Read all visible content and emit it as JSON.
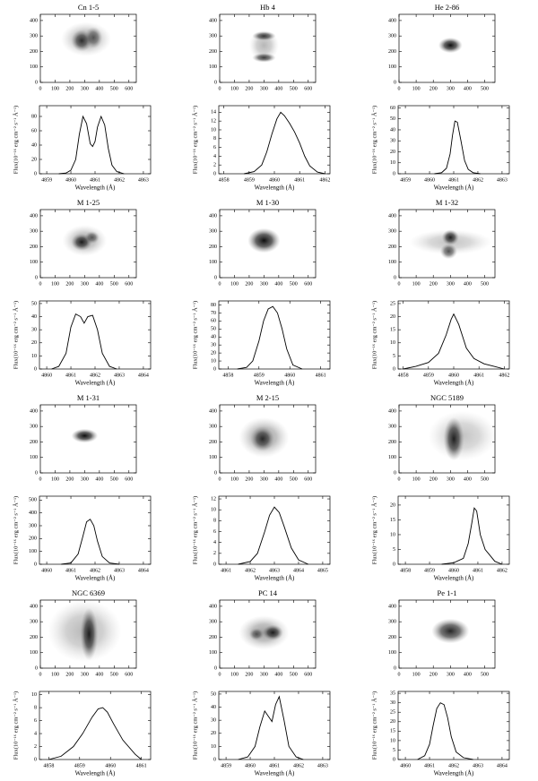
{
  "chart_data": [
    {
      "type": "image",
      "title": "Cn 1-5",
      "xlim": [
        0,
        650
      ],
      "ylim": [
        0,
        440
      ],
      "xticks": [
        0,
        100,
        200,
        300,
        400,
        500,
        600
      ],
      "yticks": [
        0,
        100,
        200,
        300,
        400
      ]
    },
    {
      "type": "line",
      "x_label": "Wavelength (Å)",
      "y_label": "Flux(10⁻¹⁶ erg cm⁻² s⁻¹ Å⁻¹)",
      "color": "#000000",
      "x": [
        4859.5,
        4859.8,
        4860.0,
        4860.2,
        4860.35,
        4860.5,
        4860.65,
        4860.8,
        4860.9,
        4861.0,
        4861.1,
        4861.25,
        4861.4,
        4861.55,
        4861.7,
        4861.9,
        4862.2
      ],
      "values": [
        0,
        1,
        5,
        20,
        55,
        80,
        70,
        42,
        38,
        45,
        65,
        80,
        68,
        35,
        12,
        3,
        0
      ],
      "xlim": [
        4858.7,
        4863.3
      ],
      "ylim": [
        0,
        95
      ],
      "xticks": [
        4859,
        4860,
        4861,
        4862,
        4863
      ],
      "yticks": [
        0,
        20,
        40,
        60,
        80
      ]
    },
    {
      "type": "image",
      "title": "Hb 4",
      "xlim": [
        0,
        650
      ],
      "ylim": [
        0,
        440
      ],
      "xticks": [
        0,
        100,
        200,
        300,
        400,
        500,
        600
      ],
      "yticks": [
        0,
        100,
        200,
        300,
        400
      ]
    },
    {
      "type": "line",
      "x_label": "Wavelength (Å)",
      "y_label": "Flux(10⁻¹⁶ erg cm⁻² s⁻¹ Å⁻¹)",
      "color": "#000000",
      "x": [
        4858.8,
        4859.2,
        4859.5,
        4859.7,
        4859.9,
        4860.1,
        4860.25,
        4860.4,
        4860.6,
        4860.8,
        4861.0,
        4861.2,
        4861.4,
        4861.7,
        4862.0
      ],
      "values": [
        0,
        0.5,
        2,
        5,
        9,
        12.5,
        14,
        13.2,
        11.5,
        9.5,
        7,
        4,
        1.8,
        0.4,
        0
      ],
      "xlim": [
        4857.8,
        4862.2
      ],
      "ylim": [
        0,
        15.5
      ],
      "xticks": [
        4858,
        4859,
        4860,
        4861,
        4862
      ],
      "yticks": [
        0,
        2,
        4,
        6,
        8,
        10,
        12,
        14
      ]
    },
    {
      "type": "image",
      "title": "He 2-86",
      "xlim": [
        0,
        560
      ],
      "ylim": [
        0,
        440
      ],
      "xticks": [
        0,
        100,
        200,
        300,
        400,
        500
      ],
      "yticks": [
        0,
        100,
        200,
        300,
        400
      ]
    },
    {
      "type": "line",
      "x_label": "Wavelength (Å)",
      "y_label": "Flux(10⁻¹⁶ erg cm⁻² s⁻¹ Å⁻¹)",
      "color": "#000000",
      "x": [
        4860.2,
        4860.5,
        4860.7,
        4860.85,
        4860.95,
        4861.05,
        4861.15,
        4861.3,
        4861.45,
        4861.6,
        4861.8,
        4862.1
      ],
      "values": [
        0,
        1,
        5,
        18,
        35,
        48,
        47,
        30,
        12,
        4,
        1,
        0
      ],
      "xlim": [
        4858.7,
        4863.3
      ],
      "ylim": [
        0,
        62
      ],
      "xticks": [
        4859,
        4860,
        4861,
        4862,
        4863
      ],
      "yticks": [
        0,
        10,
        20,
        30,
        40,
        50,
        60
      ]
    },
    {
      "type": "image",
      "title": "M 1-25",
      "xlim": [
        0,
        650
      ],
      "ylim": [
        0,
        440
      ],
      "xticks": [
        0,
        100,
        200,
        300,
        400,
        500,
        600
      ],
      "yticks": [
        0,
        100,
        200,
        300,
        400
      ]
    },
    {
      "type": "line",
      "x_label": "Wavelength (Å)",
      "y_label": "Flux(10⁻¹⁶ erg cm⁻² s⁻¹ Å⁻¹)",
      "color": "#000000",
      "x": [
        4860.2,
        4860.5,
        4860.8,
        4861.0,
        4861.2,
        4861.4,
        4861.55,
        4861.7,
        4861.9,
        4862.1,
        4862.3,
        4862.6,
        4862.9
      ],
      "values": [
        0,
        2,
        12,
        32,
        42,
        40,
        35,
        40,
        41,
        30,
        12,
        2,
        0
      ],
      "xlim": [
        4859.7,
        4864.3
      ],
      "ylim": [
        0,
        52
      ],
      "xticks": [
        4860,
        4861,
        4862,
        4863,
        4864
      ],
      "yticks": [
        0,
        10,
        20,
        30,
        40,
        50
      ]
    },
    {
      "type": "image",
      "title": "M 1-30",
      "xlim": [
        0,
        650
      ],
      "ylim": [
        0,
        440
      ],
      "xticks": [
        0,
        100,
        200,
        300,
        400,
        500,
        600
      ],
      "yticks": [
        0,
        100,
        200,
        300,
        400
      ]
    },
    {
      "type": "line",
      "x_label": "Wavelength (Å)",
      "y_label": "Flux(10⁻¹⁶ erg cm⁻² s⁻¹ Å⁻¹)",
      "color": "#000000",
      "x": [
        4858.3,
        4858.6,
        4858.8,
        4859.0,
        4859.15,
        4859.3,
        4859.45,
        4859.6,
        4859.75,
        4859.9,
        4860.1,
        4860.4
      ],
      "values": [
        0,
        2,
        10,
        35,
        60,
        75,
        78,
        70,
        50,
        25,
        5,
        0
      ],
      "xlim": [
        4857.7,
        4861.3
      ],
      "ylim": [
        0,
        85
      ],
      "xticks": [
        4858,
        4859,
        4860,
        4861
      ],
      "yticks": [
        0,
        10,
        20,
        30,
        40,
        50,
        60,
        70,
        80
      ]
    },
    {
      "type": "image",
      "title": "M 1-32",
      "xlim": [
        0,
        560
      ],
      "ylim": [
        0,
        440
      ],
      "xticks": [
        0,
        100,
        200,
        300,
        400,
        500
      ],
      "yticks": [
        0,
        100,
        200,
        300,
        400
      ]
    },
    {
      "type": "line",
      "x_label": "Wavelength (Å)",
      "y_label": "Flux(10⁻¹⁶ erg cm⁻² s⁻¹ Å⁻¹)",
      "color": "#000000",
      "x": [
        4858.0,
        4858.5,
        4859.0,
        4859.4,
        4859.7,
        4859.9,
        4860.0,
        4860.2,
        4860.5,
        4860.8,
        4861.2,
        4861.6,
        4862.0
      ],
      "values": [
        0,
        1,
        2.5,
        6,
        13,
        19,
        21,
        17,
        8,
        4,
        2,
        1,
        0
      ],
      "xlim": [
        4857.8,
        4862.2
      ],
      "ylim": [
        0,
        26
      ],
      "xticks": [
        4858,
        4859,
        4860,
        4861,
        4862
      ],
      "yticks": [
        0,
        5,
        10,
        15,
        20,
        25
      ]
    },
    {
      "type": "image",
      "title": "M 1-31",
      "xlim": [
        0,
        650
      ],
      "ylim": [
        0,
        440
      ],
      "xticks": [
        0,
        100,
        200,
        300,
        400,
        500,
        600
      ],
      "yticks": [
        0,
        100,
        200,
        300,
        400
      ]
    },
    {
      "type": "line",
      "x_label": "Wavelength (Å)",
      "y_label": "Flux(10⁻¹⁶ erg cm⁻² s⁻¹ Å⁻¹)",
      "color": "#000000",
      "x": [
        4860.6,
        4861.0,
        4861.3,
        4861.5,
        4861.65,
        4861.8,
        4861.95,
        4862.1,
        4862.3,
        4862.6,
        4863.0
      ],
      "values": [
        0,
        10,
        80,
        220,
        330,
        350,
        300,
        180,
        60,
        10,
        0
      ],
      "xlim": [
        4859.7,
        4864.3
      ],
      "ylim": [
        0,
        530
      ],
      "xticks": [
        4860,
        4861,
        4862,
        4863,
        4864
      ],
      "yticks": [
        0,
        100,
        200,
        300,
        400,
        500
      ]
    },
    {
      "type": "image",
      "title": "M 2-15",
      "xlim": [
        0,
        650
      ],
      "ylim": [
        0,
        440
      ],
      "xticks": [
        0,
        100,
        200,
        300,
        400,
        500,
        600
      ],
      "yticks": [
        0,
        100,
        200,
        300,
        400
      ]
    },
    {
      "type": "line",
      "x_label": "Wavelength (Å)",
      "y_label": "Flux(10⁻¹⁶ erg cm⁻² s⁻¹ Å⁻¹)",
      "color": "#000000",
      "x": [
        4861.5,
        4862.0,
        4862.3,
        4862.6,
        4862.8,
        4863.0,
        4863.2,
        4863.4,
        4863.7,
        4864.0,
        4864.4
      ],
      "values": [
        0,
        0.5,
        2,
        6,
        9,
        10.5,
        9.5,
        7,
        3,
        0.8,
        0
      ],
      "xlim": [
        4860.7,
        4865.3
      ],
      "ylim": [
        0,
        12.5
      ],
      "xticks": [
        4861,
        4862,
        4863,
        4864,
        4865
      ],
      "yticks": [
        0,
        2,
        4,
        6,
        8,
        10,
        12
      ]
    },
    {
      "type": "image",
      "title": "NGC 5189",
      "xlim": [
        0,
        560
      ],
      "ylim": [
        0,
        440
      ],
      "xticks": [
        0,
        100,
        200,
        300,
        400,
        500
      ],
      "yticks": [
        0,
        100,
        200,
        300,
        400
      ]
    },
    {
      "type": "line",
      "x_label": "Wavelength (Å)",
      "y_label": "Flux(10⁻¹⁶ erg cm⁻² s⁻¹ Å⁻¹)",
      "color": "#000000",
      "x": [
        4859.5,
        4860.0,
        4860.4,
        4860.6,
        4860.75,
        4860.85,
        4860.95,
        4861.1,
        4861.3,
        4861.5,
        4861.7,
        4862.0
      ],
      "values": [
        0,
        0.5,
        2,
        7,
        14,
        19,
        18,
        10,
        5,
        3,
        1,
        0
      ],
      "xlim": [
        4857.7,
        4862.3
      ],
      "ylim": [
        0,
        23
      ],
      "xticks": [
        4858,
        4859,
        4860,
        4861,
        4862
      ],
      "yticks": [
        0,
        5,
        10,
        15,
        20
      ]
    },
    {
      "type": "image",
      "title": "NGC 6369",
      "xlim": [
        0,
        650
      ],
      "ylim": [
        0,
        440
      ],
      "xticks": [
        0,
        100,
        200,
        300,
        400,
        500,
        600
      ],
      "yticks": [
        0,
        100,
        200,
        300,
        400
      ]
    },
    {
      "type": "line",
      "x_label": "Wavelength (Å)",
      "y_label": "Flux(10⁻¹⁶ erg cm⁻² s⁻¹ Å⁻¹)",
      "color": "#000000",
      "x": [
        4858.0,
        4858.4,
        4858.8,
        4859.1,
        4859.4,
        4859.6,
        4859.75,
        4859.9,
        4860.1,
        4860.4,
        4860.8,
        4861.0
      ],
      "values": [
        0,
        0.5,
        2,
        4,
        6.5,
        7.8,
        8,
        7.3,
        5.5,
        3,
        0.8,
        0
      ],
      "xlim": [
        4857.7,
        4861.3
      ],
      "ylim": [
        0,
        10.5
      ],
      "xticks": [
        4858,
        4859,
        4860,
        4861
      ],
      "yticks": [
        0,
        2,
        4,
        6,
        8,
        10
      ]
    },
    {
      "type": "image",
      "title": "PC 14",
      "xlim": [
        0,
        650
      ],
      "ylim": [
        0,
        440
      ],
      "xticks": [
        0,
        100,
        200,
        300,
        400,
        500,
        600
      ],
      "yticks": [
        0,
        100,
        200,
        300,
        400
      ]
    },
    {
      "type": "line",
      "x_label": "Wavelength (Å)",
      "y_label": "Flux(10⁻¹⁶ erg cm⁻² s⁻¹ Å⁻¹)",
      "color": "#000000",
      "x": [
        4859.5,
        4859.9,
        4860.2,
        4860.4,
        4860.6,
        4860.75,
        4860.9,
        4861.05,
        4861.2,
        4861.4,
        4861.6,
        4861.9,
        4862.2
      ],
      "values": [
        0,
        2,
        10,
        25,
        37,
        33,
        29,
        42,
        48,
        30,
        10,
        2,
        0
      ],
      "xlim": [
        4858.7,
        4863.3
      ],
      "ylim": [
        0,
        52
      ],
      "xticks": [
        4859,
        4860,
        4861,
        4862,
        4863
      ],
      "yticks": [
        0,
        10,
        20,
        30,
        40,
        50
      ]
    },
    {
      "type": "image",
      "title": "Pe 1-1",
      "xlim": [
        0,
        560
      ],
      "ylim": [
        0,
        440
      ],
      "xticks": [
        0,
        100,
        200,
        300,
        400,
        500
      ],
      "yticks": [
        0,
        100,
        200,
        300,
        400
      ]
    },
    {
      "type": "line",
      "x_label": "Wavelength (Å)",
      "y_label": "Flux(10⁻¹⁶ erg cm⁻² s⁻¹ Å⁻¹)",
      "color": "#000000",
      "x": [
        4860.5,
        4860.8,
        4861.0,
        4861.15,
        4861.3,
        4861.45,
        4861.6,
        4861.75,
        4861.9,
        4862.1,
        4862.4,
        4862.8
      ],
      "values": [
        0,
        2,
        8,
        18,
        27,
        30,
        29,
        22,
        12,
        4,
        1,
        0
      ],
      "xlim": [
        4859.7,
        4864.3
      ],
      "ylim": [
        0,
        36
      ],
      "xticks": [
        4860,
        4861,
        4862,
        4863,
        4864
      ],
      "yticks": [
        0,
        5,
        10,
        15,
        20,
        25,
        30,
        35
      ]
    }
  ]
}
